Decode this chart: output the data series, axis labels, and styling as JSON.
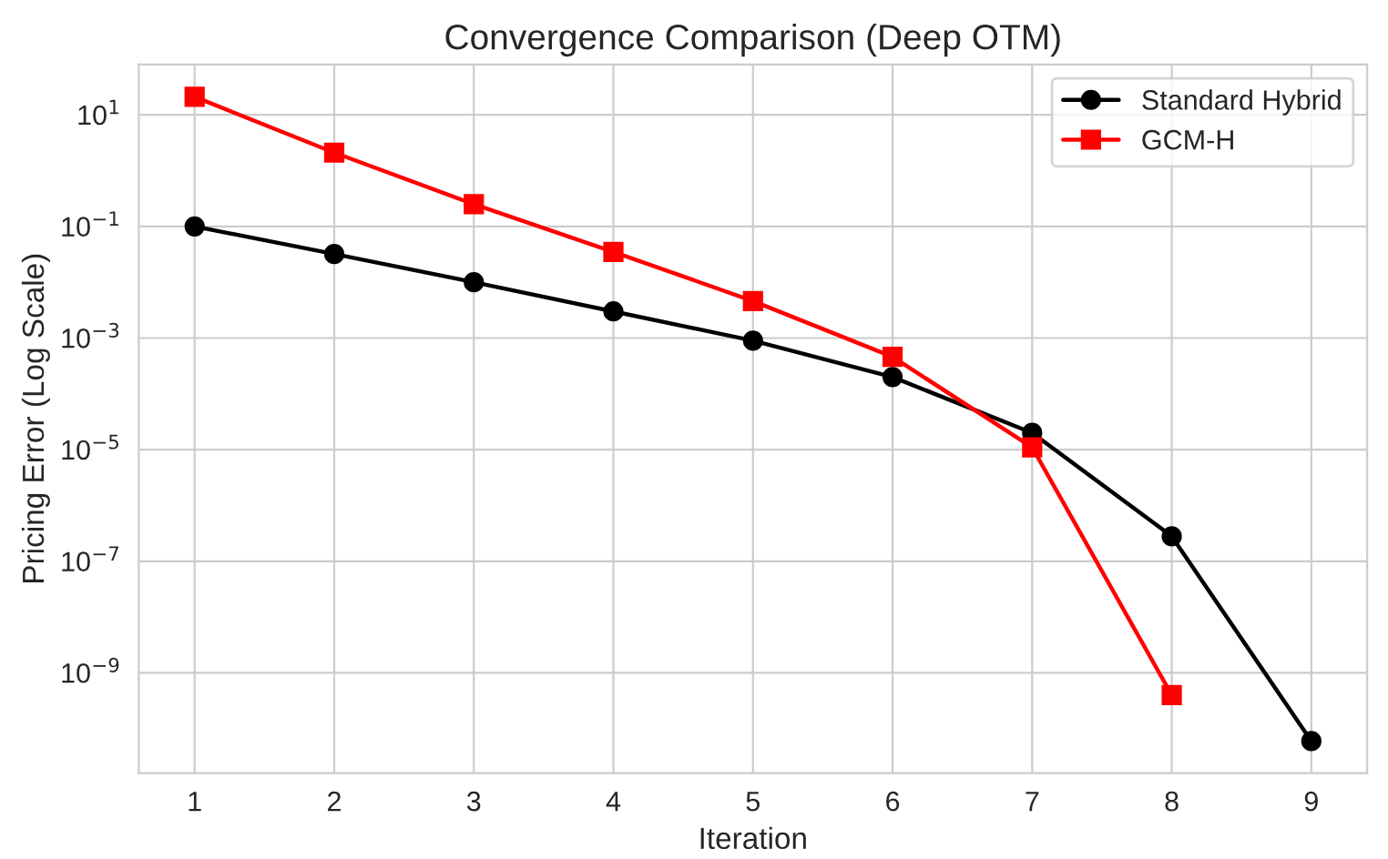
{
  "chart_data": {
    "type": "line",
    "title": "Convergence Comparison (Deep OTM)",
    "xlabel": "Iteration",
    "ylabel": "Pricing Error (Log Scale)",
    "x": [
      1,
      2,
      3,
      4,
      5,
      6,
      7,
      8,
      9
    ],
    "series": [
      {
        "name": "Standard Hybrid",
        "color": "#000000",
        "marker": "circle",
        "values": [
          0.1,
          0.032,
          0.01,
          0.003,
          0.0009,
          0.0002,
          2e-05,
          2.8e-07,
          6e-11
        ]
      },
      {
        "name": "GCM-H",
        "color": "#ff0000",
        "marker": "square",
        "values": [
          21,
          2.1,
          0.25,
          0.035,
          0.0046,
          0.00046,
          1.1e-05,
          4e-10,
          null
        ]
      }
    ],
    "log": "y",
    "xlim": [
      0.6,
      9.4
    ],
    "ylim": [
      1.6e-11,
      80
    ],
    "xticks": [
      1,
      2,
      3,
      4,
      5,
      6,
      7,
      8,
      9
    ],
    "yticks": [
      {
        "value": 1e-09,
        "label": "10$^{−9}$"
      },
      {
        "value": 1e-07,
        "label": "10$^{−7}$"
      },
      {
        "value": 1e-05,
        "label": "10$^{−5}$"
      },
      {
        "value": 0.001,
        "label": "10$^{−3}$"
      },
      {
        "value": 0.1,
        "label": "10$^{−1}$"
      },
      {
        "value": 10,
        "label": "10$^{1}$"
      }
    ],
    "grid": true,
    "legend": "top right",
    "line_style": "solid"
  }
}
